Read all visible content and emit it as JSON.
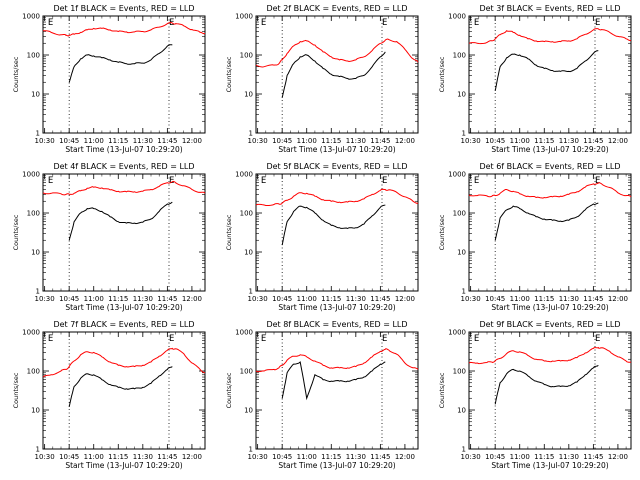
{
  "x_tick_labels": [
    "10:30",
    "10:45",
    "11:00",
    "11:15",
    "11:30",
    "11:45",
    "12:00"
  ],
  "y_tick_labels": [
    "1",
    "10",
    "100",
    "1000"
  ],
  "ylabel": "Counts/sec",
  "xlabel": "Start Time (13-Jul-07 10:29:20)",
  "event_markers": [
    {
      "time": "10:32",
      "label": "E"
    },
    {
      "time": "11:46",
      "label": "E"
    }
  ],
  "vertical_dotted_lines": [
    "10:45",
    "11:46"
  ],
  "colors": {
    "events": "#000000",
    "lld": "#ff0000",
    "axes": "#000000"
  },
  "chart_data": [
    {
      "type": "line",
      "title": "Det 1f BLACK = Events, RED = LLD",
      "xlabel": "Start Time (13-Jul-07 10:29:20)",
      "ylabel": "Counts/sec",
      "xlim": [
        "10:29",
        "12:08"
      ],
      "ylim": [
        1,
        1000
      ],
      "yscale": "log",
      "grid": false,
      "x": [
        "10:29",
        "10:34",
        "10:40",
        "10:43",
        "10:45",
        "10:48",
        "10:52",
        "10:56",
        "11:00",
        "11:05",
        "11:10",
        "11:15",
        "11:20",
        "11:25",
        "11:30",
        "11:35",
        "11:40",
        "11:45",
        "11:48",
        "11:50",
        "11:55",
        "12:00",
        "12:05",
        "12:08"
      ],
      "series": [
        {
          "name": "LLD",
          "color": "#ff0000",
          "values": [
            420,
            380,
            330,
            320,
            320,
            340,
            380,
            440,
            480,
            480,
            440,
            400,
            390,
            390,
            400,
            440,
            520,
            640,
            660,
            640,
            560,
            450,
            380,
            360
          ]
        },
        {
          "name": "Events",
          "color": "#000000",
          "values": [
            null,
            null,
            null,
            null,
            20,
            50,
            80,
            100,
            95,
            85,
            75,
            65,
            60,
            60,
            62,
            75,
            110,
            170,
            180,
            null,
            null,
            null,
            null,
            null
          ]
        }
      ]
    },
    {
      "type": "line",
      "title": "Det 2f BLACK = Events, RED = LLD",
      "xlabel": "Start Time (13-Jul-07 10:29:20)",
      "ylabel": "Counts/sec",
      "xlim": [
        "10:29",
        "12:08"
      ],
      "ylim": [
        1,
        1000
      ],
      "yscale": "log",
      "grid": false,
      "x": [
        "10:29",
        "10:34",
        "10:40",
        "10:43",
        "10:45",
        "10:48",
        "10:52",
        "10:56",
        "11:00",
        "11:05",
        "11:10",
        "11:15",
        "11:20",
        "11:25",
        "11:30",
        "11:35",
        "11:40",
        "11:45",
        "11:48",
        "11:50",
        "11:55",
        "12:00",
        "12:05",
        "12:08"
      ],
      "series": [
        {
          "name": "LLD",
          "color": "#ff0000",
          "values": [
            55,
            50,
            55,
            60,
            75,
            110,
            170,
            220,
            230,
            180,
            120,
            90,
            75,
            70,
            75,
            90,
            130,
            200,
            240,
            250,
            220,
            140,
            80,
            65
          ]
        },
        {
          "name": "Events",
          "color": "#000000",
          "values": [
            null,
            null,
            null,
            null,
            8,
            30,
            60,
            90,
            100,
            70,
            45,
            32,
            28,
            25,
            25,
            30,
            50,
            90,
            120,
            null,
            null,
            null,
            null,
            null
          ]
        }
      ]
    },
    {
      "type": "line",
      "title": "Det 3f BLACK = Events, RED = LLD",
      "xlabel": "Start Time (13-Jul-07 10:29:20)",
      "ylabel": "Counts/sec",
      "xlim": [
        "10:29",
        "12:08"
      ],
      "ylim": [
        1,
        1000
      ],
      "yscale": "log",
      "grid": false,
      "x": [
        "10:29",
        "10:34",
        "10:40",
        "10:43",
        "10:45",
        "10:48",
        "10:52",
        "10:56",
        "11:00",
        "11:05",
        "11:10",
        "11:15",
        "11:20",
        "11:25",
        "11:30",
        "11:35",
        "11:40",
        "11:45",
        "11:48",
        "11:50",
        "11:55",
        "12:00",
        "12:05",
        "12:08"
      ],
      "series": [
        {
          "name": "LLD",
          "color": "#ff0000",
          "values": [
            200,
            200,
            210,
            230,
            260,
            330,
            420,
            380,
            320,
            260,
            230,
            220,
            220,
            220,
            230,
            260,
            340,
            440,
            470,
            450,
            380,
            300,
            260,
            240
          ]
        },
        {
          "name": "Events",
          "color": "#000000",
          "values": [
            null,
            null,
            null,
            null,
            12,
            50,
            85,
            105,
            100,
            80,
            55,
            45,
            40,
            38,
            38,
            45,
            70,
            110,
            130,
            null,
            null,
            null,
            null,
            null
          ]
        }
      ]
    },
    {
      "type": "line",
      "title": "Det 4f BLACK = Events, RED = LLD",
      "xlabel": "Start Time (13-Jul-07 10:29:20)",
      "ylabel": "Counts/sec",
      "xlim": [
        "10:29",
        "12:08"
      ],
      "ylim": [
        1,
        1000
      ],
      "yscale": "log",
      "grid": false,
      "x": [
        "10:29",
        "10:34",
        "10:40",
        "10:43",
        "10:45",
        "10:48",
        "10:52",
        "10:56",
        "11:00",
        "11:05",
        "11:10",
        "11:15",
        "11:20",
        "11:25",
        "11:30",
        "11:35",
        "11:40",
        "11:45",
        "11:48",
        "11:50",
        "11:55",
        "12:00",
        "12:05",
        "12:08"
      ],
      "series": [
        {
          "name": "LLD",
          "color": "#ff0000",
          "values": [
            330,
            320,
            310,
            300,
            300,
            320,
            370,
            430,
            460,
            440,
            390,
            360,
            350,
            350,
            360,
            400,
            480,
            600,
            630,
            600,
            500,
            400,
            340,
            320
          ]
        },
        {
          "name": "Events",
          "color": "#000000",
          "values": [
            null,
            null,
            null,
            null,
            20,
            60,
            100,
            130,
            130,
            110,
            80,
            60,
            55,
            55,
            58,
            70,
            110,
            170,
            190,
            null,
            null,
            null,
            null,
            null
          ]
        }
      ]
    },
    {
      "type": "line",
      "title": "Det 5f BLACK = Events, RED = LLD",
      "xlabel": "Start Time (13-Jul-07 10:29:20)",
      "ylabel": "Counts/sec",
      "xlim": [
        "10:29",
        "12:08"
      ],
      "ylim": [
        1,
        1000
      ],
      "yscale": "log",
      "grid": false,
      "x": [
        "10:29",
        "10:34",
        "10:40",
        "10:43",
        "10:45",
        "10:48",
        "10:52",
        "10:56",
        "11:00",
        "11:05",
        "11:10",
        "11:15",
        "11:20",
        "11:25",
        "11:30",
        "11:35",
        "11:40",
        "11:45",
        "11:48",
        "11:50",
        "11:55",
        "12:00",
        "12:05",
        "12:08"
      ],
      "series": [
        {
          "name": "LLD",
          "color": "#ff0000",
          "values": [
            160,
            160,
            165,
            170,
            180,
            210,
            270,
            330,
            320,
            270,
            220,
            200,
            190,
            190,
            200,
            230,
            300,
            380,
            400,
            390,
            340,
            260,
            200,
            180
          ]
        },
        {
          "name": "Events",
          "color": "#000000",
          "values": [
            null,
            null,
            null,
            null,
            15,
            60,
            110,
            150,
            140,
            100,
            65,
            48,
            42,
            40,
            42,
            52,
            85,
            140,
            160,
            null,
            null,
            null,
            null,
            null
          ]
        }
      ]
    },
    {
      "type": "line",
      "title": "Det 6f BLACK = Events, RED = LLD",
      "xlabel": "Start Time (13-Jul-07 10:29:20)",
      "ylabel": "Counts/sec",
      "xlim": [
        "10:29",
        "12:08"
      ],
      "ylim": [
        1,
        1000
      ],
      "yscale": "log",
      "grid": false,
      "x": [
        "10:29",
        "10:34",
        "10:40",
        "10:43",
        "10:45",
        "10:48",
        "10:52",
        "10:56",
        "11:00",
        "11:05",
        "11:10",
        "11:15",
        "11:20",
        "11:25",
        "11:30",
        "11:35",
        "11:40",
        "11:45",
        "11:48",
        "11:50",
        "11:55",
        "12:00",
        "12:05",
        "12:08"
      ],
      "series": [
        {
          "name": "LLD",
          "color": "#ff0000",
          "values": [
            290,
            280,
            275,
            270,
            280,
            320,
            400,
            360,
            310,
            270,
            250,
            250,
            260,
            270,
            300,
            350,
            460,
            560,
            580,
            560,
            450,
            330,
            280,
            260
          ]
        },
        {
          "name": "Events",
          "color": "#000000",
          "values": [
            null,
            null,
            null,
            null,
            20,
            75,
            120,
            150,
            130,
            100,
            80,
            70,
            65,
            62,
            65,
            80,
            120,
            170,
            180,
            null,
            null,
            null,
            null,
            null
          ]
        }
      ]
    },
    {
      "type": "line",
      "title": "Det 7f BLACK = Events, RED = LLD",
      "xlabel": "Start Time (13-Jul-07 10:29:20)",
      "ylabel": "Counts/sec",
      "xlim": [
        "10:29",
        "12:08"
      ],
      "ylim": [
        1,
        1000
      ],
      "yscale": "log",
      "grid": false,
      "x": [
        "10:29",
        "10:34",
        "10:40",
        "10:43",
        "10:45",
        "10:48",
        "10:52",
        "10:56",
        "11:00",
        "11:05",
        "11:10",
        "11:15",
        "11:20",
        "11:25",
        "11:30",
        "11:35",
        "11:40",
        "11:45",
        "11:48",
        "11:50",
        "11:55",
        "12:00",
        "12:05",
        "12:08"
      ],
      "series": [
        {
          "name": "LLD",
          "color": "#ff0000",
          "values": [
            70,
            80,
            100,
            110,
            130,
            180,
            260,
            310,
            300,
            230,
            170,
            140,
            130,
            130,
            140,
            170,
            240,
            340,
            380,
            370,
            280,
            160,
            110,
            90
          ]
        },
        {
          "name": "Events",
          "color": "#000000",
          "values": [
            null,
            null,
            null,
            null,
            12,
            40,
            65,
            85,
            80,
            60,
            45,
            38,
            35,
            35,
            38,
            48,
            75,
            110,
            130,
            null,
            null,
            null,
            null,
            null
          ]
        }
      ]
    },
    {
      "type": "line",
      "title": "Det 8f BLACK = Events, RED = LLD",
      "xlabel": "Start Time (13-Jul-07 10:29:20)",
      "ylabel": "Counts/sec",
      "xlim": [
        "10:29",
        "12:08"
      ],
      "ylim": [
        1,
        1000
      ],
      "yscale": "log",
      "grid": false,
      "x": [
        "10:29",
        "10:34",
        "10:40",
        "10:43",
        "10:45",
        "10:48",
        "10:52",
        "10:56",
        "11:00",
        "11:05",
        "11:10",
        "11:15",
        "11:20",
        "11:25",
        "11:30",
        "11:35",
        "11:40",
        "11:45",
        "11:48",
        "11:50",
        "11:55",
        "12:00",
        "12:05",
        "12:08"
      ],
      "series": [
        {
          "name": "LLD",
          "color": "#ff0000",
          "values": [
            100,
            100,
            110,
            120,
            140,
            190,
            240,
            260,
            230,
            180,
            140,
            120,
            120,
            120,
            130,
            160,
            230,
            320,
            360,
            350,
            270,
            160,
            120,
            110
          ]
        },
        {
          "name": "Events",
          "color": "#000000",
          "values": [
            null,
            null,
            null,
            null,
            20,
            90,
            150,
            170,
            20,
            80,
            60,
            55,
            55,
            55,
            60,
            70,
            100,
            150,
            170,
            null,
            null,
            null,
            null,
            null
          ]
        }
      ]
    },
    {
      "type": "line",
      "title": "Det 9f BLACK = Events, RED = LLD",
      "xlabel": "Start Time (13-Jul-07 10:29:20)",
      "ylabel": "Counts/sec",
      "xlim": [
        "10:29",
        "12:08"
      ],
      "ylim": [
        1,
        1000
      ],
      "yscale": "log",
      "grid": false,
      "x": [
        "10:29",
        "10:34",
        "10:40",
        "10:43",
        "10:45",
        "10:48",
        "10:52",
        "10:56",
        "11:00",
        "11:05",
        "11:10",
        "11:15",
        "11:20",
        "11:25",
        "11:30",
        "11:35",
        "11:40",
        "11:45",
        "11:48",
        "11:50",
        "11:55",
        "12:00",
        "12:05",
        "12:08"
      ],
      "series": [
        {
          "name": "LLD",
          "color": "#ff0000",
          "values": [
            160,
            160,
            165,
            170,
            180,
            210,
            280,
            330,
            310,
            250,
            200,
            180,
            180,
            180,
            190,
            220,
            290,
            380,
            400,
            390,
            320,
            230,
            180,
            170
          ]
        },
        {
          "name": "Events",
          "color": "#000000",
          "values": [
            null,
            null,
            null,
            null,
            14,
            50,
            85,
            110,
            100,
            75,
            55,
            45,
            40,
            40,
            42,
            52,
            80,
            120,
            140,
            null,
            null,
            null,
            null,
            null
          ]
        }
      ]
    }
  ]
}
